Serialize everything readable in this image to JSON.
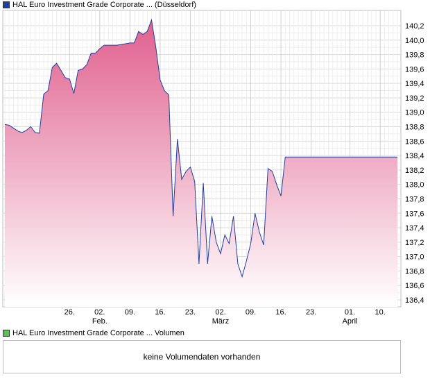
{
  "legend": {
    "price_label": "HAL Euro Investment Grade Corporate ... (Düsseldorf)",
    "price_color": "#1f3f9e",
    "volume_label": "HAL Euro Investment Grade Corporate ... Volumen",
    "volume_color": "#5fbf5f"
  },
  "volume_panel": {
    "message": "keine Volumendaten vorhanden"
  },
  "chart_data": {
    "type": "area",
    "title": "",
    "xlabel": "",
    "ylabel": "",
    "ylim": [
      136.25,
      140.45
    ],
    "y_ticks": [
      "140,2",
      "140,0",
      "139,8",
      "139,6",
      "139,4",
      "139,2",
      "139,0",
      "138,8",
      "138,6",
      "138,4",
      "138,2",
      "138,0",
      "137,8",
      "137,6",
      "137,4",
      "137,2",
      "137,0",
      "136,8",
      "136,6",
      "136,4"
    ],
    "x_range": [
      0,
      91
    ],
    "x_ticks": [
      {
        "day": 15,
        "label": "26.",
        "sublabel": ""
      },
      {
        "day": 22,
        "label": "02.",
        "sublabel": "Feb."
      },
      {
        "day": 29,
        "label": "09.",
        "sublabel": ""
      },
      {
        "day": 36,
        "label": "16.",
        "sublabel": ""
      },
      {
        "day": 43,
        "label": "23.",
        "sublabel": ""
      },
      {
        "day": 50,
        "label": "02.",
        "sublabel": "März"
      },
      {
        "day": 57,
        "label": "09.",
        "sublabel": ""
      },
      {
        "day": 64,
        "label": "16.",
        "sublabel": ""
      },
      {
        "day": 71,
        "label": "23.",
        "sublabel": ""
      },
      {
        "day": 80,
        "label": "01.",
        "sublabel": "April"
      },
      {
        "day": 87,
        "label": "10.",
        "sublabel": ""
      }
    ],
    "series": [
      {
        "name": "",
        "color": "#1f3f9e",
        "fill_top": "#e0608e",
        "fill_bottom": "#ffffff",
        "x": [
          0,
          1,
          2,
          3,
          4,
          5,
          6,
          7,
          8,
          9,
          10,
          11,
          12,
          13,
          14,
          15,
          16,
          17,
          18,
          19,
          20,
          21,
          22,
          23,
          24,
          25,
          26,
          27,
          28,
          29,
          30,
          31,
          32,
          33,
          34,
          35,
          36,
          37,
          38,
          39,
          40,
          41,
          42,
          43,
          44,
          45,
          46,
          47,
          48,
          49,
          50,
          51,
          52,
          53,
          54,
          55,
          56,
          57,
          58,
          59,
          60,
          61,
          62,
          63,
          64,
          65,
          66,
          67,
          68,
          69,
          70,
          71,
          72,
          73,
          74,
          75,
          76,
          77,
          78,
          79,
          80,
          81,
          82,
          83,
          84,
          85,
          86,
          87,
          88,
          89,
          90,
          91
        ],
        "y": [
          138.83,
          138.82,
          138.78,
          138.74,
          138.72,
          138.75,
          138.8,
          138.72,
          138.71,
          139.25,
          139.3,
          139.62,
          139.68,
          139.58,
          139.48,
          139.46,
          139.26,
          139.58,
          139.6,
          139.66,
          139.82,
          139.82,
          139.88,
          139.93,
          139.93,
          139.93,
          139.93,
          139.94,
          139.95,
          139.96,
          139.96,
          140.12,
          140.08,
          140.12,
          140.28,
          139.9,
          139.45,
          139.3,
          139.24,
          137.56,
          138.63,
          138.07,
          138.18,
          138.24,
          138.04,
          136.9,
          138.02,
          136.9,
          137.56,
          137.2,
          137.04,
          137.3,
          137.18,
          137.56,
          136.9,
          136.72,
          136.94,
          137.18,
          137.6,
          137.34,
          137.16,
          138.22,
          138.18,
          138.0,
          137.84,
          138.38,
          138.38,
          138.38,
          138.38,
          138.38,
          138.38,
          138.38,
          138.38,
          138.38,
          138.38,
          138.38,
          138.38,
          138.38,
          138.38,
          138.38,
          138.38,
          138.38,
          138.38,
          138.38,
          138.38,
          138.38,
          138.38,
          138.38,
          138.38,
          138.38,
          138.38,
          138.38
        ]
      }
    ],
    "grid": true,
    "legend": "top-left"
  }
}
